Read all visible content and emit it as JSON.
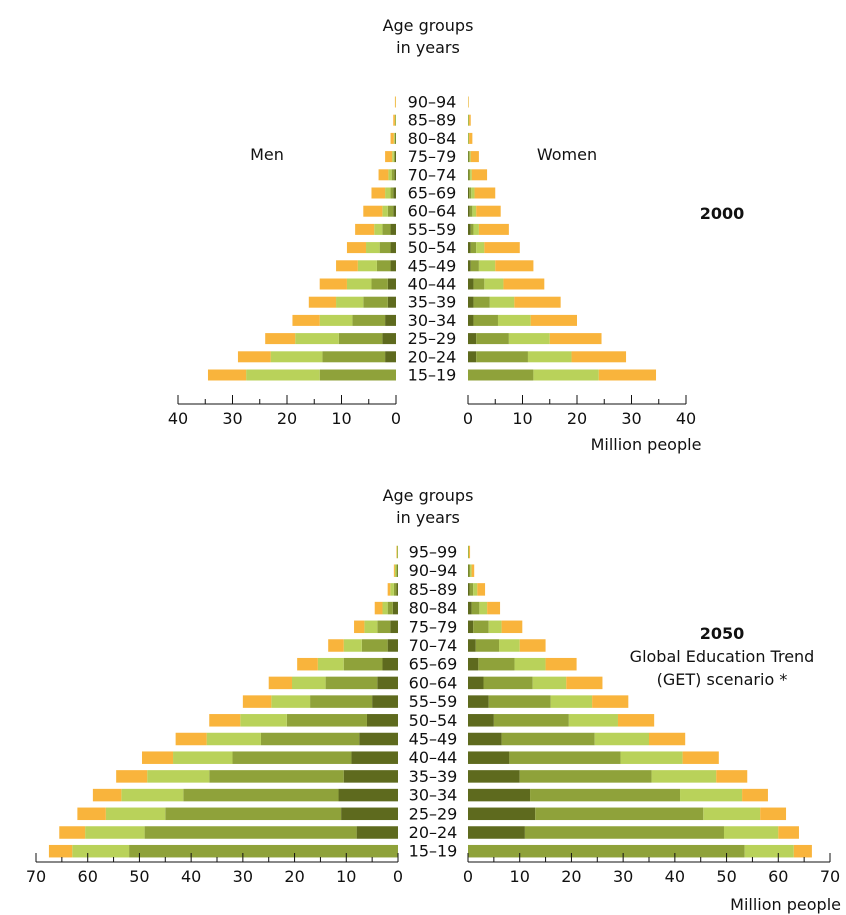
{
  "chart_data": [
    {
      "type": "bar",
      "title": "2000",
      "subtitle": "",
      "ylabel": "Age groups in years",
      "ylabel_lines": [
        "Age groups",
        "in years"
      ],
      "xlabel": "Million people",
      "left_label": "Men",
      "right_label": "Women",
      "xlim": [
        0,
        40
      ],
      "xticks": [
        40,
        30,
        20,
        10,
        0
      ],
      "categories": [
        "15–19",
        "20–24",
        "25–29",
        "30–34",
        "35–39",
        "40–44",
        "45–49",
        "50–54",
        "55–59",
        "60–64",
        "65–69",
        "70–74",
        "75–79",
        "80–84",
        "85–89",
        "90–94"
      ],
      "colors": [
        "#5e6a1e",
        "#8fa23a",
        "#b9d25a",
        "#f9b43c"
      ],
      "men": [
        [
          0.0,
          14.0,
          13.5,
          7.0
        ],
        [
          2.0,
          11.5,
          9.5,
          6.0
        ],
        [
          2.5,
          8.0,
          8.0,
          5.5
        ],
        [
          2.0,
          6.0,
          6.0,
          5.0
        ],
        [
          1.5,
          4.5,
          5.0,
          5.0
        ],
        [
          1.5,
          3.0,
          4.5,
          5.0
        ],
        [
          1.0,
          2.5,
          3.5,
          4.0
        ],
        [
          1.0,
          2.0,
          2.5,
          3.5
        ],
        [
          1.0,
          1.5,
          1.5,
          3.5
        ],
        [
          0.5,
          1.0,
          1.0,
          3.5
        ],
        [
          0.5,
          0.5,
          1.0,
          2.5
        ],
        [
          0.3,
          0.5,
          0.6,
          1.8
        ],
        [
          0.2,
          0.2,
          0.3,
          1.3
        ],
        [
          0.1,
          0.1,
          0.2,
          0.6
        ],
        [
          0.0,
          0.1,
          0.1,
          0.3
        ],
        [
          0.0,
          0.0,
          0.05,
          0.15
        ]
      ],
      "women": [
        [
          0.0,
          12.0,
          12.0,
          10.5
        ],
        [
          1.5,
          9.5,
          8.0,
          10.0
        ],
        [
          1.5,
          6.0,
          7.5,
          9.5
        ],
        [
          1.0,
          4.5,
          6.0,
          8.5
        ],
        [
          1.0,
          3.0,
          4.5,
          8.5
        ],
        [
          1.0,
          2.0,
          3.5,
          7.5
        ],
        [
          0.5,
          1.5,
          3.0,
          7.0
        ],
        [
          0.5,
          1.0,
          1.5,
          6.5
        ],
        [
          0.5,
          0.5,
          1.0,
          5.5
        ],
        [
          0.3,
          0.5,
          0.7,
          4.5
        ],
        [
          0.2,
          0.4,
          0.6,
          3.8
        ],
        [
          0.1,
          0.3,
          0.3,
          2.8
        ],
        [
          0.1,
          0.2,
          0.2,
          1.5
        ],
        [
          0.0,
          0.1,
          0.1,
          0.6
        ],
        [
          0.0,
          0.1,
          0.1,
          0.3
        ],
        [
          0.0,
          0.0,
          0.05,
          0.1
        ]
      ]
    },
    {
      "type": "bar",
      "title": "2050",
      "subtitle": "Global Education Trend (GET) scenario *",
      "subtitle_lines": [
        "Global Education Trend",
        "(GET) scenario *"
      ],
      "ylabel": "Age groups in years",
      "ylabel_lines": [
        "Age groups",
        "in years"
      ],
      "xlabel": "Million people",
      "xlim": [
        0,
        70
      ],
      "xticks": [
        70,
        60,
        50,
        40,
        30,
        20,
        10,
        0
      ],
      "categories": [
        "15–19",
        "20–24",
        "25–29",
        "30–34",
        "35–39",
        "40–44",
        "45–49",
        "50–54",
        "55–59",
        "60–64",
        "65–69",
        "70–74",
        "75–79",
        "80–84",
        "85–89",
        "90–94",
        "95–99"
      ],
      "colors": [
        "#5e6a1e",
        "#8fa23a",
        "#b9d25a",
        "#f9b43c"
      ],
      "men": [
        [
          0.0,
          52.0,
          11.0,
          4.5
        ],
        [
          8.0,
          41.0,
          11.5,
          5.0
        ],
        [
          11.0,
          34.0,
          11.5,
          5.5
        ],
        [
          11.5,
          30.0,
          12.0,
          5.5
        ],
        [
          10.5,
          26.0,
          12.0,
          6.0
        ],
        [
          9.0,
          23.0,
          11.5,
          6.0
        ],
        [
          7.5,
          19.0,
          10.5,
          6.0
        ],
        [
          6.0,
          15.5,
          9.0,
          6.0
        ],
        [
          5.0,
          12.0,
          7.5,
          5.5
        ],
        [
          4.0,
          10.0,
          6.5,
          4.5
        ],
        [
          3.0,
          7.5,
          5.0,
          4.0
        ],
        [
          2.0,
          5.0,
          3.5,
          3.0
        ],
        [
          1.5,
          2.5,
          2.5,
          2.0
        ],
        [
          1.0,
          1.0,
          1.0,
          1.5
        ],
        [
          0.3,
          0.5,
          0.7,
          0.5
        ],
        [
          0.1,
          0.2,
          0.3,
          0.2
        ],
        [
          0.0,
          0.1,
          0.1,
          0.1
        ]
      ],
      "women": [
        [
          0.0,
          53.5,
          9.5,
          3.5
        ],
        [
          11.0,
          38.5,
          10.5,
          4.0
        ],
        [
          13.0,
          32.5,
          11.0,
          5.0
        ],
        [
          12.0,
          29.0,
          12.0,
          5.0
        ],
        [
          10.0,
          25.5,
          12.5,
          6.0
        ],
        [
          8.0,
          21.5,
          12.0,
          7.0
        ],
        [
          6.5,
          18.0,
          10.5,
          7.0
        ],
        [
          5.0,
          14.5,
          9.5,
          7.0
        ],
        [
          4.0,
          12.0,
          8.0,
          7.0
        ],
        [
          3.0,
          9.5,
          6.5,
          7.0
        ],
        [
          2.0,
          7.0,
          6.0,
          6.0
        ],
        [
          1.5,
          4.5,
          4.0,
          5.0
        ],
        [
          1.0,
          3.0,
          2.5,
          4.0
        ],
        [
          0.7,
          1.5,
          1.5,
          2.5
        ],
        [
          0.3,
          0.7,
          0.8,
          1.5
        ],
        [
          0.1,
          0.3,
          0.3,
          0.5
        ],
        [
          0.0,
          0.1,
          0.1,
          0.2
        ]
      ]
    }
  ]
}
